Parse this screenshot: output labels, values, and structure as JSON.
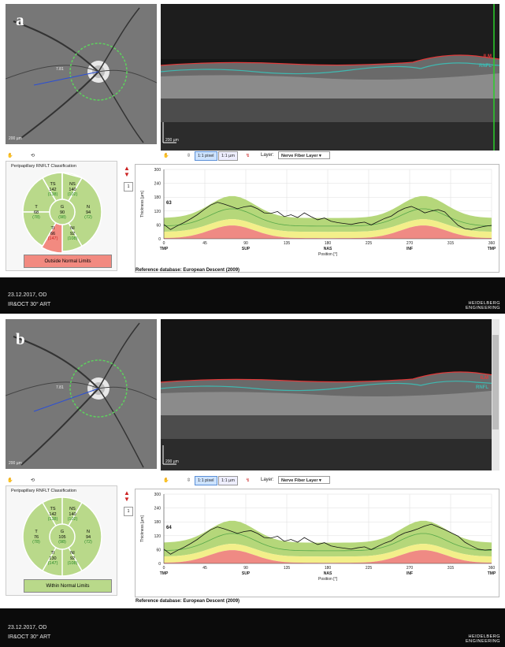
{
  "panels": [
    {
      "letter": "a",
      "fundus_scale": "200 µm",
      "fundus_angle": "7.81",
      "bscan_scale": "200 µm",
      "bscan_layer_ilm": "ILM",
      "bscan_layer_rnfl": "RNFL",
      "toolbar": {
        "pixel_btn": "1:1 pixel",
        "um_btn": "1:1 µm",
        "layer_label": "Layer:",
        "layer_value": "Nerve Fiber Layer"
      },
      "classification": {
        "title": "Peripapillary RNFLT Classification",
        "sectors": {
          "TS": {
            "label": "TS",
            "value": "142",
            "ref": "(138)"
          },
          "NS": {
            "label": "NS",
            "value": "140",
            "ref": "(102)"
          },
          "T": {
            "label": "T",
            "value": "68",
            "ref": "(78)"
          },
          "G": {
            "label": "G",
            "value": "90",
            "ref": "(98)"
          },
          "N": {
            "label": "N",
            "value": "94",
            "ref": "(72)"
          },
          "TI": {
            "label": "TI",
            "value": "66",
            "ref": "(147)"
          },
          "NI": {
            "label": "NI",
            "value": "92",
            "ref": "(108)"
          }
        },
        "result": "Outside Normal Limits",
        "result_color": "#f28a80"
      },
      "page_index": "1",
      "graph": {
        "ylabel": "Thickness [µm]",
        "yticks": [
          "300",
          "240",
          "180",
          "120",
          "60",
          "0"
        ],
        "xticks": [
          "0",
          "45",
          "90",
          "135",
          "180",
          "225",
          "270",
          "315",
          "360"
        ],
        "xsectors": [
          "TMP",
          "",
          "SUP",
          "",
          "NAS",
          "",
          "INF",
          "",
          "TMP"
        ],
        "xlabel": "Position [°]",
        "value_marker": "63",
        "thickness": [
          62,
          40,
          56,
          70,
          86,
          104,
          126,
          146,
          158,
          150,
          140,
          130,
          138,
          142,
          130,
          112,
          110,
          118,
          96,
          104,
          92,
          112,
          96,
          82,
          90,
          76,
          70,
          66,
          62,
          68,
          72,
          60,
          74,
          88,
          98,
          118,
          132,
          140,
          128,
          112,
          120,
          126,
          116,
          86,
          58,
          44,
          40,
          48,
          54,
          58
        ]
      },
      "refdb": "Reference database: European Descent (2009)",
      "footer": {
        "date": "23.12.2017, OD",
        "mode": "IR&OCT 30° ART",
        "brand1": "HEIDELBERG",
        "brand2": "ENGINEERING"
      }
    },
    {
      "letter": "b",
      "fundus_scale": "200 µm",
      "fundus_angle": "7.81",
      "bscan_scale": "200 µm",
      "bscan_layer_ilm": "ILM",
      "bscan_layer_rnfl": "RNFL",
      "toolbar": {
        "pixel_btn": "1:1 pixel",
        "um_btn": "1:1 µm",
        "layer_label": "Layer:",
        "layer_value": "Nerve Fiber Layer"
      },
      "classification": {
        "title": "Peripapillary RNFLT Classification",
        "sectors": {
          "TS": {
            "label": "TS",
            "value": "142",
            "ref": "(138)"
          },
          "NS": {
            "label": "NS",
            "value": "140",
            "ref": "(102)"
          },
          "T": {
            "label": "T",
            "value": "76",
            "ref": "(78)"
          },
          "G": {
            "label": "G",
            "value": "105",
            "ref": "(98)"
          },
          "N": {
            "label": "N",
            "value": "94",
            "ref": "(72)"
          },
          "TI": {
            "label": "TI",
            "value": "130",
            "ref": "(147)"
          },
          "NI": {
            "label": "NI",
            "value": "92",
            "ref": "(108)"
          }
        },
        "result": "Within Normal Limits",
        "result_color": "#b9d98a"
      },
      "page_index": "1",
      "graph": {
        "ylabel": "Thickness [µm]",
        "yticks": [
          "300",
          "240",
          "180",
          "120",
          "60",
          "0"
        ],
        "xticks": [
          "0",
          "45",
          "90",
          "135",
          "180",
          "225",
          "270",
          "315",
          "360"
        ],
        "xsectors": [
          "TMP",
          "",
          "SUP",
          "",
          "NAS",
          "",
          "INF",
          "",
          "TMP"
        ],
        "xlabel": "Position [°]",
        "value_marker": "64",
        "thickness": [
          62,
          40,
          56,
          70,
          86,
          104,
          126,
          146,
          158,
          150,
          140,
          130,
          138,
          142,
          130,
          112,
          110,
          118,
          96,
          104,
          92,
          112,
          96,
          82,
          90,
          76,
          70,
          66,
          62,
          68,
          72,
          60,
          74,
          88,
          98,
          118,
          132,
          140,
          150,
          162,
          170,
          158,
          146,
          132,
          118,
          92,
          76,
          62,
          58,
          60
        ]
      },
      "refdb": "Reference database: European Descent (2009)",
      "footer": {
        "date": "23.12.2017, OD",
        "mode": "IR&OCT 30° ART",
        "brand1": "HEIDELBERG",
        "brand2": "ENGINEERING"
      }
    }
  ],
  "colors": {
    "ilm": "#e03a3a",
    "rnfl": "#3fb8b0",
    "green_band": "#b5d77a",
    "yellow_band": "#f3ef8a",
    "red_band": "#ef8a84",
    "mean_line": "#58a84a",
    "patient_line": "#111111"
  }
}
